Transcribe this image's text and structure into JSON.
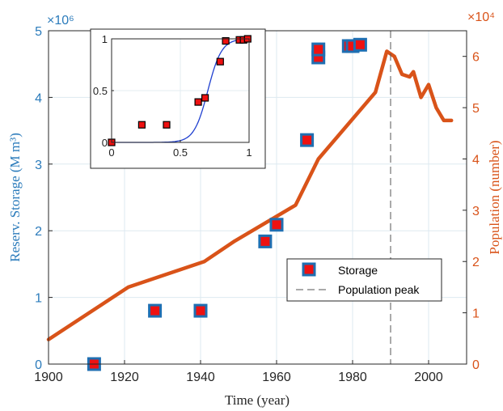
{
  "chart_data": [
    {
      "type": "scatter+line",
      "title": "",
      "xlabel": "Time (year)",
      "ylabel_left": "Reserv. Storage (M m³)",
      "ylabel_right": "Population (number)",
      "xlim": [
        1900,
        2010
      ],
      "ylim_left": [
        0,
        5
      ],
      "ylim_right": [
        0,
        6.5
      ],
      "left_multiplier": "×10⁶",
      "right_multiplier": "×10⁴",
      "x_ticks": [
        "1900",
        "1920",
        "1940",
        "1960",
        "1980",
        "2000"
      ],
      "y_left_ticks": [
        "0",
        "1",
        "2",
        "3",
        "4",
        "5"
      ],
      "y_right_ticks": [
        "0",
        "1",
        "2",
        "3",
        "4",
        "5",
        "6"
      ],
      "grid": true,
      "legend_position": "bottom-right",
      "series": [
        {
          "name": "Storage",
          "axis": "left",
          "marker": "square",
          "color": "#ee1111",
          "edge_color": "#1f6fb2",
          "x": [
            1912,
            1928,
            1940,
            1957,
            1960,
            1968,
            1971,
            1971,
            1979,
            1980,
            1982
          ],
          "y": [
            0.0,
            0.8,
            0.8,
            1.84,
            2.09,
            3.36,
            4.6,
            4.72,
            4.77,
            4.77,
            4.79
          ]
        },
        {
          "name": "Population",
          "axis": "right",
          "type": "line",
          "color": "#d95319",
          "x": [
            1900,
            1921,
            1941,
            1949,
            1965,
            1971,
            1986,
            1989,
            1991,
            1993,
            1995,
            1996,
            1998,
            2000,
            2002,
            2004,
            2006
          ],
          "y": [
            0.48,
            1.5,
            2.0,
            2.4,
            3.1,
            4.0,
            5.3,
            6.1,
            6.0,
            5.65,
            5.6,
            5.7,
            5.2,
            5.45,
            5.0,
            4.75,
            4.75
          ]
        },
        {
          "name": "Population peak",
          "axis": "left",
          "type": "vline",
          "color": "#555555",
          "x": 1990
        }
      ]
    },
    {
      "type": "scatter+line",
      "title": "",
      "xlim": [
        0,
        1
      ],
      "ylim": [
        0,
        1
      ],
      "x_ticks": [
        "0",
        "0.5",
        "1"
      ],
      "y_ticks": [
        "0",
        "0.5",
        "1"
      ],
      "scatter": {
        "color": "#ee1111",
        "x": [
          0.0,
          0.22,
          0.4,
          0.63,
          0.68,
          0.79,
          0.83,
          0.93,
          0.96,
          0.99
        ],
        "y": [
          0.0,
          0.17,
          0.17,
          0.39,
          0.43,
          0.78,
          0.98,
          0.99,
          0.99,
          1.0
        ]
      },
      "curve": {
        "color": "#2040d0",
        "type": "logistic",
        "midpoint": 0.7,
        "steepness": 20
      }
    }
  ]
}
